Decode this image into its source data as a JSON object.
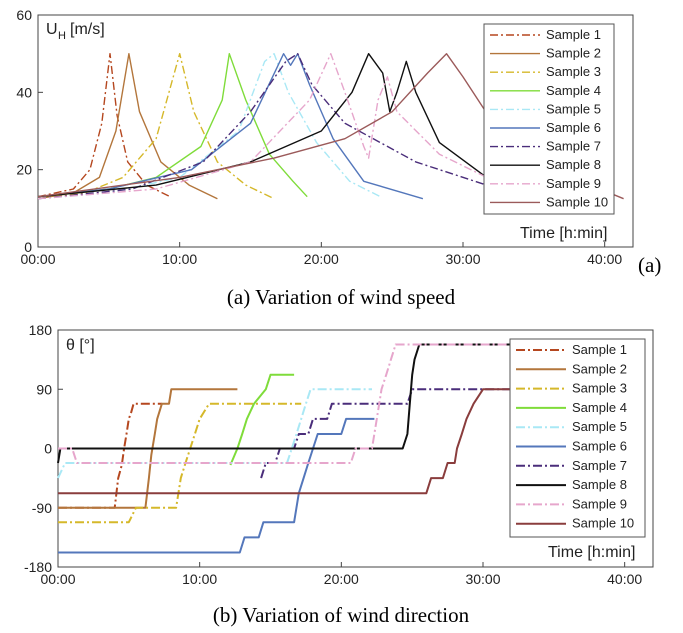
{
  "panel_label_a": "(a)",
  "caption_a": "(a) Variation of wind speed",
  "caption_b": "(b) Variation of wind direction",
  "chart_data": [
    {
      "type": "line",
      "ylabel_main": "U",
      "ylabel_sub": "H",
      "ylabel_unit": "[m/s]",
      "xlabel": "Time [h:min]",
      "xlim": [
        0,
        2520
      ],
      "ylim": [
        0,
        60
      ],
      "xticks": [
        0,
        600,
        1200,
        1800,
        2400
      ],
      "xtick_labels": [
        "00:00",
        "10:00",
        "20:00",
        "30:00",
        "40:00"
      ],
      "yticks": [
        0,
        20,
        40,
        60
      ],
      "ytick_labels": [
        "0",
        "20",
        "40",
        "60"
      ],
      "legend_position": "right",
      "series": [
        {
          "name": "Sample 1",
          "color": "#b5471f",
          "dash": "8,3,2,3",
          "points": [
            [
              0,
              13
            ],
            [
              150,
              15
            ],
            [
              220,
              20
            ],
            [
              270,
              32
            ],
            [
              305,
              50
            ],
            [
              335,
              34
            ],
            [
              380,
              22
            ],
            [
              460,
              16
            ],
            [
              560,
              13
            ]
          ]
        },
        {
          "name": "Sample 2",
          "color": "#b3763c",
          "dash": "",
          "points": [
            [
              0,
              12.5
            ],
            [
              150,
              14
            ],
            [
              260,
              18
            ],
            [
              330,
              30
            ],
            [
              385,
              50
            ],
            [
              430,
              35
            ],
            [
              520,
              22
            ],
            [
              640,
              16
            ],
            [
              760,
              12.5
            ]
          ]
        },
        {
          "name": "Sample 3",
          "color": "#d5b82a",
          "dash": "8,3,2,3",
          "points": [
            [
              0,
              12.5
            ],
            [
              200,
              14
            ],
            [
              360,
              18
            ],
            [
              500,
              28
            ],
            [
              600,
              50
            ],
            [
              660,
              35
            ],
            [
              760,
              22
            ],
            [
              880,
              16
            ],
            [
              1000,
              12.5
            ]
          ]
        },
        {
          "name": "Sample 4",
          "color": "#7fdc3a",
          "dash": "",
          "points": [
            [
              0,
              13
            ],
            [
              300,
              15
            ],
            [
              500,
              18
            ],
            [
              690,
              26
            ],
            [
              780,
              38
            ],
            [
              810,
              50
            ],
            [
              880,
              38
            ],
            [
              980,
              24
            ],
            [
              1080,
              17
            ],
            [
              1140,
              13
            ]
          ]
        },
        {
          "name": "Sample 5",
          "color": "#a9e8f5",
          "dash": "8,3,2,3",
          "points": [
            [
              0,
              12.5
            ],
            [
              300,
              14
            ],
            [
              600,
              18
            ],
            [
              850,
              30
            ],
            [
              960,
              48
            ],
            [
              1000,
              50
            ],
            [
              1060,
              40
            ],
            [
              1180,
              27
            ],
            [
              1320,
              17
            ],
            [
              1450,
              13
            ]
          ]
        },
        {
          "name": "Sample 6",
          "color": "#5477bb",
          "dash": "",
          "points": [
            [
              0,
              13
            ],
            [
              300,
              15
            ],
            [
              650,
              20
            ],
            [
              900,
              32
            ],
            [
              1040,
              50
            ],
            [
              1070,
              47
            ],
            [
              1100,
              50
            ],
            [
              1150,
              42
            ],
            [
              1250,
              28
            ],
            [
              1380,
              17
            ],
            [
              1630,
              12.5
            ]
          ]
        },
        {
          "name": "Sample 7",
          "color": "#4a2d7a",
          "dash": "8,3,2,3",
          "points": [
            [
              0,
              12.5
            ],
            [
              400,
              15
            ],
            [
              700,
              22
            ],
            [
              900,
              35
            ],
            [
              1050,
              48
            ],
            [
              1100,
              50
            ],
            [
              1160,
              42
            ],
            [
              1300,
              32
            ],
            [
              1600,
              22
            ],
            [
              1900,
              16
            ],
            [
              2150,
              12.5
            ]
          ]
        },
        {
          "name": "Sample 8",
          "color": "#101010",
          "dash": "",
          "points": [
            [
              0,
              13
            ],
            [
              500,
              16
            ],
            [
              900,
              22
            ],
            [
              1200,
              30
            ],
            [
              1330,
              40
            ],
            [
              1400,
              50
            ],
            [
              1460,
              45
            ],
            [
              1490,
              35
            ],
            [
              1520,
              40
            ],
            [
              1560,
              48
            ],
            [
              1600,
              40
            ],
            [
              1700,
              27
            ],
            [
              1900,
              18
            ],
            [
              2280,
              12.5
            ]
          ]
        },
        {
          "name": "Sample 9",
          "color": "#e6a6cc",
          "dash": "8,3,2,3",
          "points": [
            [
              0,
              12.5
            ],
            [
              500,
              15
            ],
            [
              900,
              22
            ],
            [
              1150,
              38
            ],
            [
              1240,
              50
            ],
            [
              1300,
              40
            ],
            [
              1380,
              26
            ],
            [
              1400,
              23
            ],
            [
              1440,
              38
            ],
            [
              1480,
              44
            ],
            [
              1520,
              35
            ],
            [
              1700,
              24
            ],
            [
              1900,
              18
            ],
            [
              2300,
              14
            ],
            [
              2440,
              12.5
            ]
          ]
        },
        {
          "name": "Sample 10",
          "color": "#9b5a5a",
          "dash": "",
          "points": [
            [
              0,
              13
            ],
            [
              600,
              18
            ],
            [
              1000,
              23
            ],
            [
              1300,
              28
            ],
            [
              1500,
              35
            ],
            [
              1650,
              45
            ],
            [
              1730,
              50
            ],
            [
              1800,
              44
            ],
            [
              1950,
              30
            ],
            [
              2100,
              22
            ],
            [
              2300,
              17
            ],
            [
              2480,
              12.5
            ]
          ]
        }
      ]
    },
    {
      "type": "line",
      "ylabel": "θ [°]",
      "xlabel": "Time [h:min]",
      "xlim": [
        0,
        2520
      ],
      "ylim": [
        -180,
        180
      ],
      "xticks": [
        0,
        600,
        1200,
        1800,
        2400
      ],
      "xtick_labels": [
        "00:00",
        "10:00",
        "20:00",
        "30:00",
        "40:00"
      ],
      "yticks": [
        -180,
        -90,
        0,
        90,
        180
      ],
      "ytick_labels": [
        "-180",
        "-90",
        "0",
        "90",
        "180"
      ],
      "legend_position": "right",
      "series": [
        {
          "name": "Sample 1",
          "color": "#b5471f",
          "dash": "9,3,2,3",
          "points": [
            [
              0,
              -90
            ],
            [
              240,
              -90
            ],
            [
              255,
              -45
            ],
            [
              270,
              -25
            ],
            [
              280,
              0
            ],
            [
              290,
              22
            ],
            [
              300,
              45
            ],
            [
              310,
              55
            ],
            [
              320,
              68
            ],
            [
              440,
              68
            ]
          ]
        },
        {
          "name": "Sample 2",
          "color": "#b3763c",
          "dash": "",
          "points": [
            [
              0,
              -90
            ],
            [
              370,
              -90
            ],
            [
              385,
              -45
            ],
            [
              395,
              -10
            ],
            [
              410,
              22
            ],
            [
              420,
              45
            ],
            [
              440,
              68
            ],
            [
              470,
              68
            ],
            [
              480,
              90
            ],
            [
              760,
              90
            ]
          ]
        },
        {
          "name": "Sample 3",
          "color": "#d5b82a",
          "dash": "9,3,2,3",
          "points": [
            [
              0,
              -112
            ],
            [
              300,
              -112
            ],
            [
              330,
              -90
            ],
            [
              500,
              -90
            ],
            [
              520,
              -45
            ],
            [
              540,
              -22
            ],
            [
              560,
              0
            ],
            [
              580,
              22
            ],
            [
              600,
              45
            ],
            [
              640,
              68
            ],
            [
              1030,
              68
            ]
          ]
        },
        {
          "name": "Sample 4",
          "color": "#7fdc3a",
          "dash": "",
          "points": [
            [
              730,
              -25
            ],
            [
              760,
              0
            ],
            [
              780,
              22
            ],
            [
              800,
              45
            ],
            [
              830,
              68
            ],
            [
              880,
              90
            ],
            [
              900,
              112
            ],
            [
              1000,
              112
            ]
          ]
        },
        {
          "name": "Sample 5",
          "color": "#a9e8f5",
          "dash": "9,3,2,3",
          "points": [
            [
              0,
              -45
            ],
            [
              30,
              -22
            ],
            [
              970,
              -22
            ],
            [
              990,
              0
            ],
            [
              1010,
              22
            ],
            [
              1030,
              45
            ],
            [
              1050,
              68
            ],
            [
              1070,
              90
            ],
            [
              1330,
              90
            ]
          ]
        },
        {
          "name": "Sample 6",
          "color": "#5477bb",
          "dash": "",
          "points": [
            [
              0,
              -158
            ],
            [
              770,
              -158
            ],
            [
              790,
              -135
            ],
            [
              850,
              -135
            ],
            [
              870,
              -112
            ],
            [
              1000,
              -112
            ],
            [
              1020,
              -68
            ],
            [
              1040,
              -45
            ],
            [
              1060,
              -22
            ],
            [
              1080,
              0
            ],
            [
              1100,
              22
            ],
            [
              1200,
              22
            ],
            [
              1220,
              45
            ],
            [
              1340,
              45
            ]
          ]
        },
        {
          "name": "Sample 7",
          "color": "#4a2d7a",
          "dash": "9,3,2,3",
          "points": [
            [
              860,
              -45
            ],
            [
              880,
              -22
            ],
            [
              920,
              -22
            ],
            [
              940,
              0
            ],
            [
              1000,
              0
            ],
            [
              1020,
              22
            ],
            [
              1060,
              22
            ],
            [
              1080,
              45
            ],
            [
              1140,
              45
            ],
            [
              1160,
              68
            ],
            [
              1480,
              68
            ],
            [
              1500,
              90
            ],
            [
              2050,
              90
            ]
          ]
        },
        {
          "name": "Sample 8",
          "color": "#101010",
          "dash": "",
          "points": [
            [
              0,
              -22
            ],
            [
              10,
              0
            ],
            [
              1460,
              0
            ],
            [
              1480,
              22
            ],
            [
              1490,
              68
            ],
            [
              1500,
              112
            ],
            [
              1510,
              135
            ],
            [
              1530,
              158
            ],
            [
              2250,
              158
            ]
          ]
        },
        {
          "name": "Sample 9",
          "color": "#e6a6cc",
          "dash": "9,3,2,3",
          "points": [
            [
              0,
              0
            ],
            [
              60,
              0
            ],
            [
              80,
              -22
            ],
            [
              1240,
              -22
            ],
            [
              1260,
              0
            ],
            [
              1330,
              0
            ],
            [
              1350,
              45
            ],
            [
              1370,
              90
            ],
            [
              1390,
              112
            ],
            [
              1410,
              135
            ],
            [
              1430,
              158
            ],
            [
              2420,
              158
            ]
          ]
        },
        {
          "name": "Sample 10",
          "color": "#8a3d3d",
          "dash": "",
          "points": [
            [
              0,
              -68
            ],
            [
              1560,
              -68
            ],
            [
              1580,
              -45
            ],
            [
              1630,
              -45
            ],
            [
              1650,
              -22
            ],
            [
              1680,
              -22
            ],
            [
              1690,
              0
            ],
            [
              1710,
              22
            ],
            [
              1730,
              45
            ],
            [
              1760,
              68
            ],
            [
              1800,
              90
            ],
            [
              2240,
              90
            ],
            [
              2260,
              112
            ],
            [
              2400,
              112
            ]
          ]
        }
      ]
    }
  ]
}
